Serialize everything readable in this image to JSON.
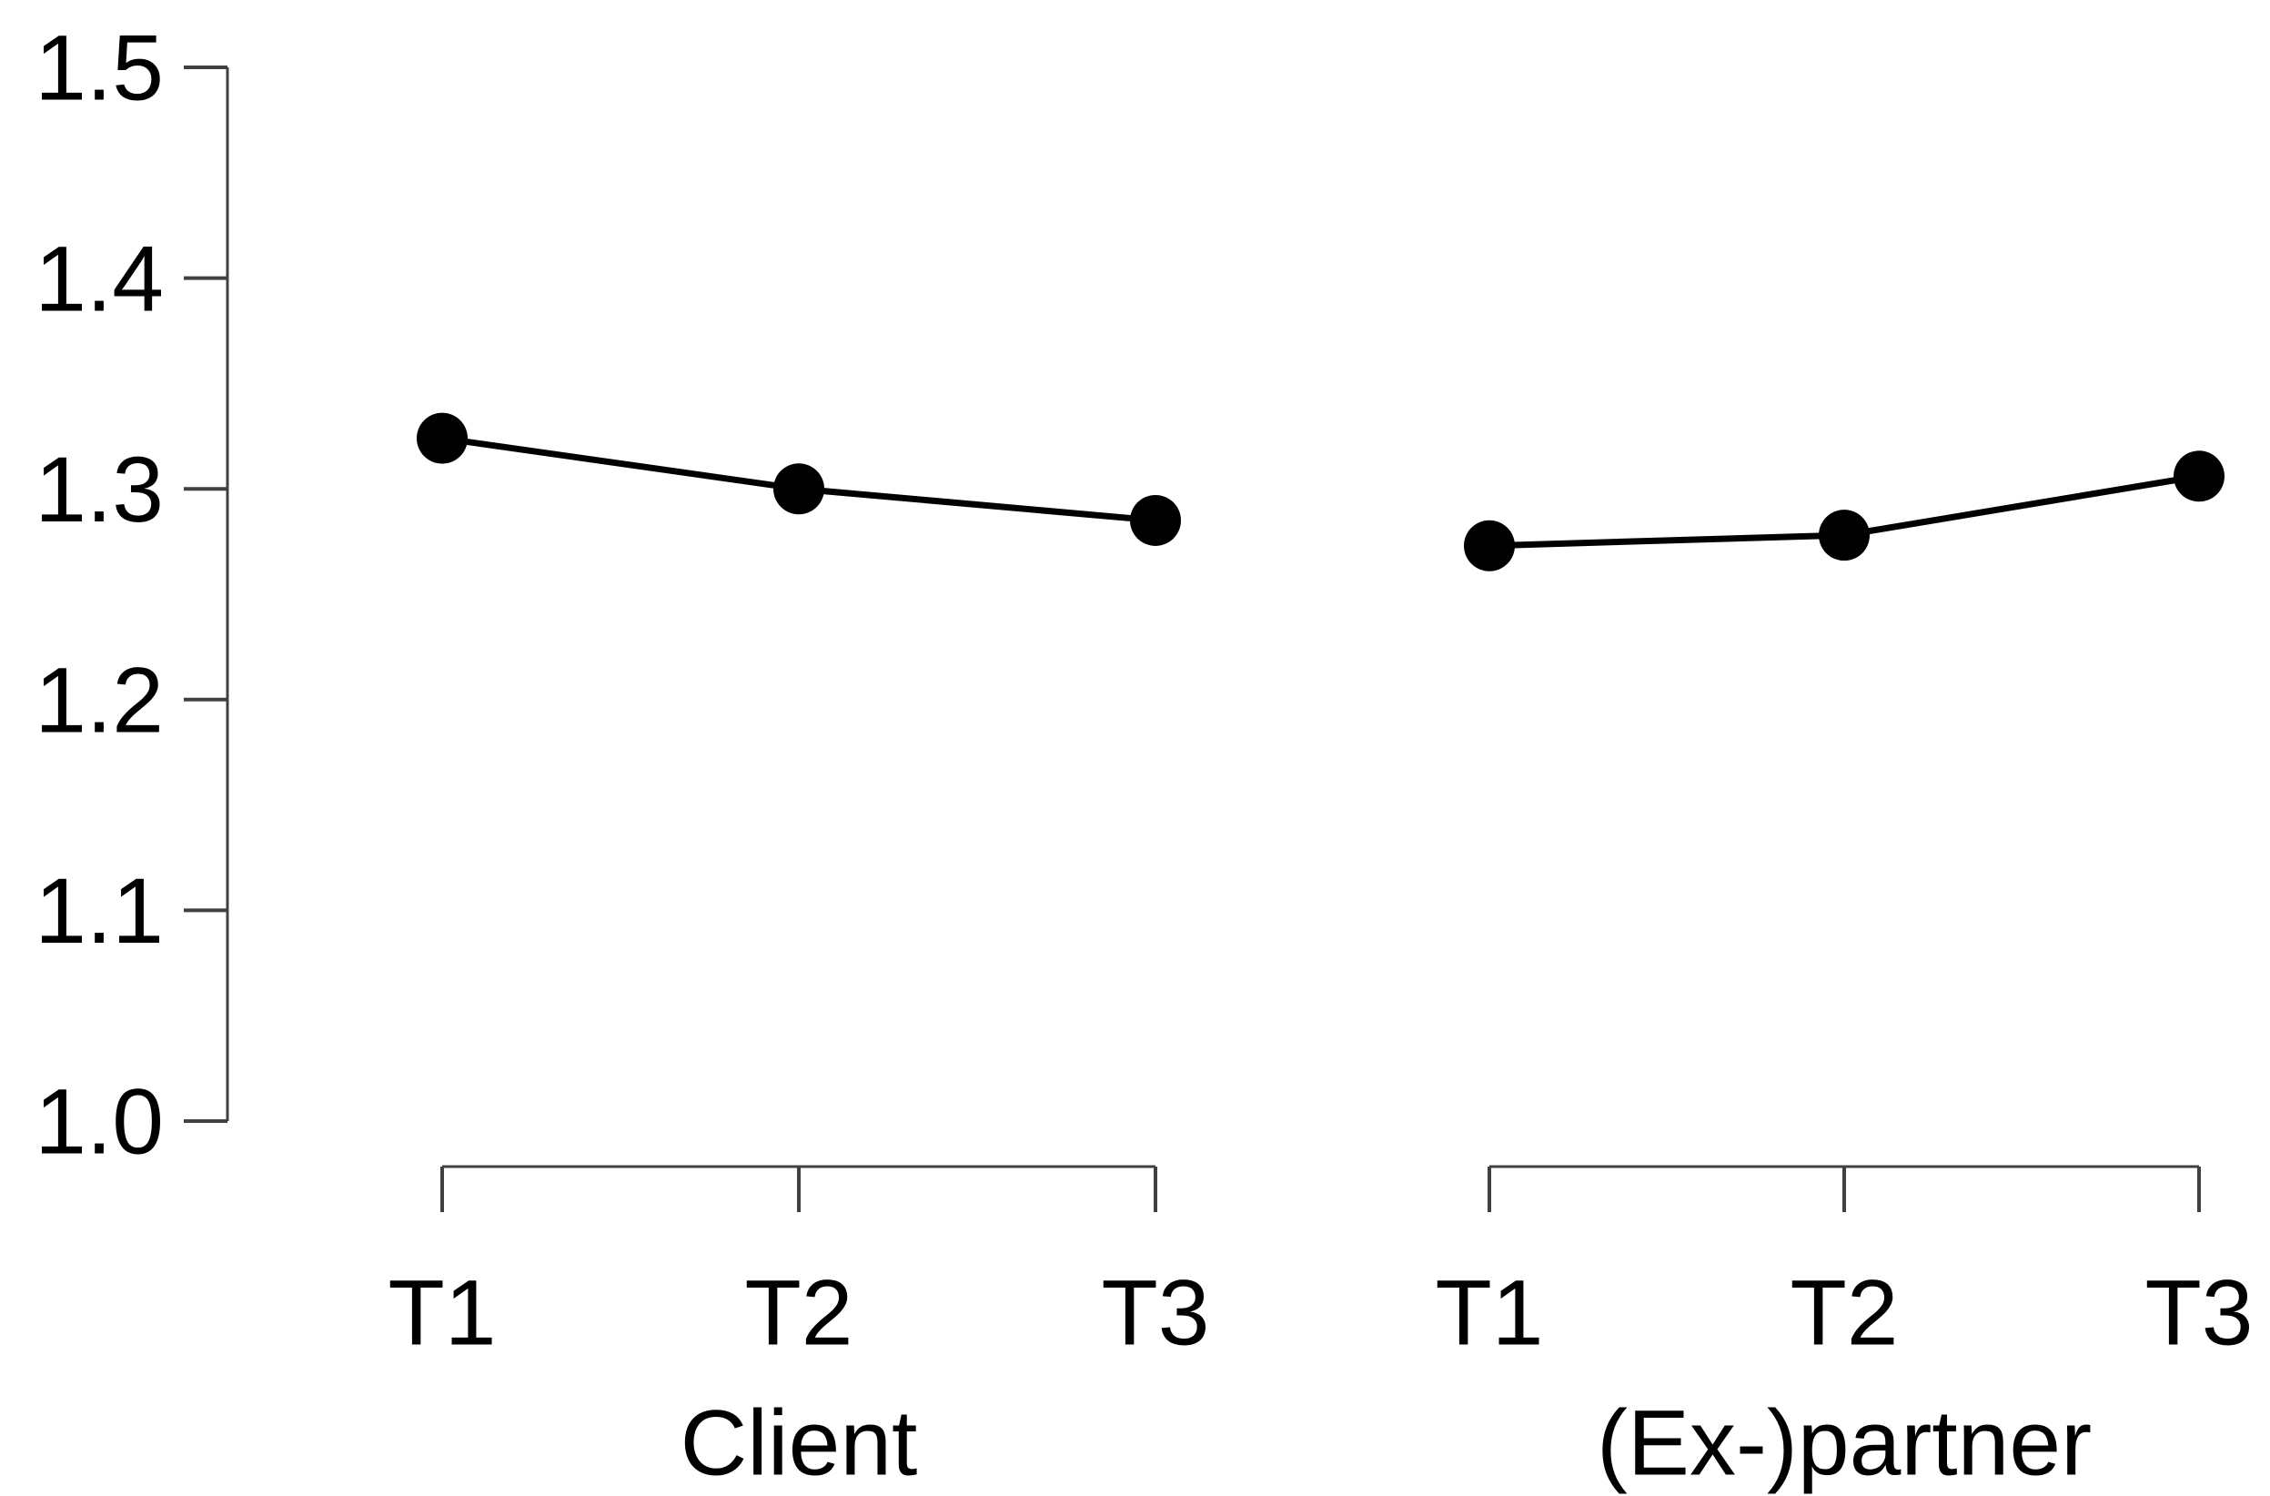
{
  "chart_data": {
    "type": "line",
    "title": "",
    "xlabel": "",
    "ylabel": "",
    "grid": false,
    "legend": false,
    "background": "#ffffff",
    "text_color": "#000000",
    "axis_color": "#404040",
    "series_color": "#000000",
    "marker": "filled-circle",
    "y_axis": {
      "min": 1.0,
      "max": 1.5,
      "tick_step": 0.1,
      "tick_labels": [
        "1.0",
        "1.1",
        "1.2",
        "1.3",
        "1.4",
        "1.5"
      ]
    },
    "panels": [
      {
        "group_label": "Client",
        "categories": [
          "T1",
          "T2",
          "T3"
        ],
        "values": [
          1.324,
          1.3,
          1.285
        ]
      },
      {
        "group_label": "(Ex-)partner",
        "categories": [
          "T1",
          "T2",
          "T3"
        ],
        "values": [
          1.273,
          1.278,
          1.306
        ]
      }
    ]
  }
}
